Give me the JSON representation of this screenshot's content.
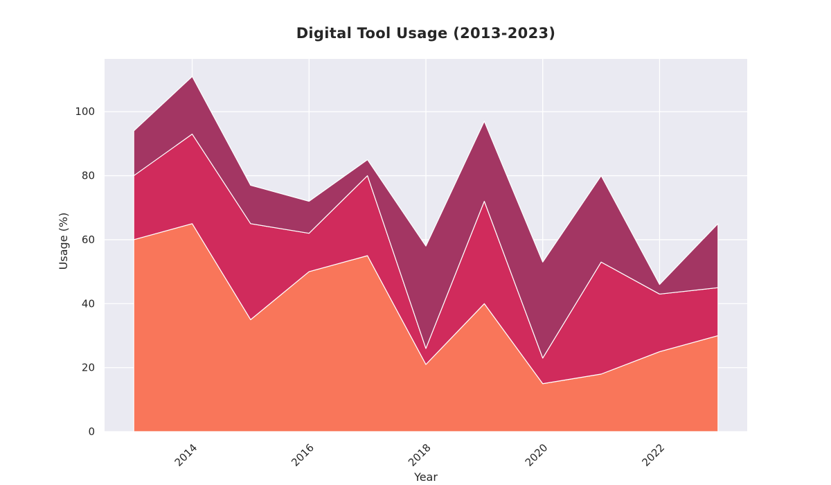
{
  "chart_data": {
    "type": "area",
    "stacked": true,
    "title": "Digital Tool Usage (2013-2023)",
    "xlabel": "Year",
    "ylabel": "Usage (%)",
    "x": [
      2013,
      2014,
      2015,
      2016,
      2017,
      2018,
      2019,
      2020,
      2021,
      2022,
      2023
    ],
    "x_ticks": [
      2014,
      2016,
      2018,
      2020,
      2022
    ],
    "y_ticks": [
      0,
      20,
      40,
      60,
      80,
      100
    ],
    "xlim": [
      2012.5,
      2023.5
    ],
    "ylim": [
      0,
      116.5
    ],
    "grid": true,
    "series": [
      {
        "values": [
          60,
          65,
          35,
          50,
          55,
          21,
          40,
          15,
          18,
          25,
          30
        ],
        "color": "#f9765a"
      },
      {
        "values": [
          20,
          28,
          30,
          12,
          25,
          5,
          32,
          8,
          35,
          18,
          15
        ],
        "color": "#d02b5c"
      },
      {
        "values": [
          14,
          18,
          12,
          10,
          5,
          32,
          25,
          30,
          27,
          3,
          20
        ],
        "color": "#a33663"
      }
    ],
    "background_color": "#eaeaf2",
    "grid_color": "#ffffff"
  }
}
